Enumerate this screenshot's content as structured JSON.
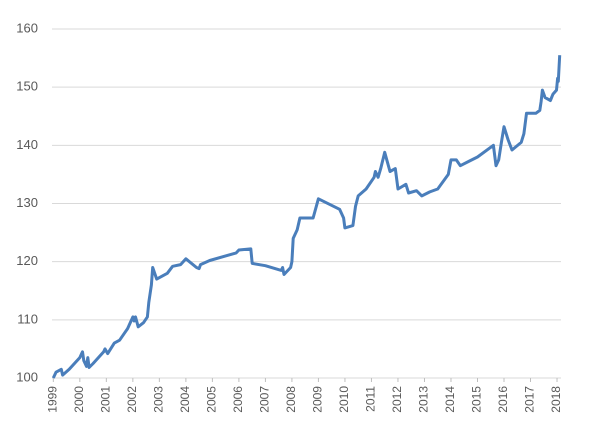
{
  "chart_data": {
    "type": "line",
    "color": "#4a7ebb",
    "grid": true,
    "x": [
      1999.0,
      1999.1,
      1999.3,
      1999.35,
      1999.6,
      2000.0,
      2000.1,
      2000.15,
      2000.25,
      2000.3,
      2000.35,
      2000.5,
      2000.9,
      2000.95,
      2001.05,
      2001.3,
      2001.5,
      2001.8,
      2002.0,
      2002.05,
      2002.1,
      2002.2,
      2002.4,
      2002.55,
      2002.6,
      2002.7,
      2002.75,
      2002.9,
      2003.3,
      2003.5,
      2003.8,
      2004.0,
      2004.4,
      2004.5,
      2004.55,
      2004.9,
      2005.5,
      2005.9,
      2006.0,
      2006.45,
      2006.5,
      2007.0,
      2007.6,
      2007.65,
      2007.7,
      2007.95,
      2008.0,
      2008.05,
      2008.2,
      2008.3,
      2008.8,
      2009.0,
      2009.8,
      2009.95,
      2010.0,
      2010.3,
      2010.4,
      2010.5,
      2010.8,
      2011.1,
      2011.15,
      2011.25,
      2011.35,
      2011.5,
      2011.7,
      2011.9,
      2012.0,
      2012.3,
      2012.4,
      2012.7,
      2012.9,
      2013.2,
      2013.5,
      2013.9,
      2014.0,
      2014.2,
      2014.35,
      2014.7,
      2015.0,
      2015.6,
      2015.7,
      2015.8,
      2015.9,
      2016.0,
      2016.15,
      2016.3,
      2016.65,
      2016.75,
      2016.85,
      2017.2,
      2017.35,
      2017.4,
      2017.45,
      2017.55,
      2017.75,
      2017.85,
      2017.98,
      2018.02,
      2018.05,
      2018.1
    ],
    "values": [
      100,
      101,
      101.5,
      100.5,
      101.5,
      103.5,
      104.5,
      103,
      102,
      103.5,
      101.8,
      102.5,
      104.5,
      105,
      104.2,
      106,
      106.5,
      108.5,
      110.5,
      109.8,
      110.5,
      108.8,
      109.5,
      110.5,
      113,
      116,
      119,
      117,
      118,
      119.2,
      119.5,
      120.5,
      119,
      118.8,
      119.5,
      120.2,
      121,
      121.5,
      122,
      122.2,
      119.7,
      119.3,
      118.5,
      119,
      117.8,
      119,
      120,
      124,
      125.5,
      127.5,
      127.5,
      130.8,
      129,
      127.5,
      125.8,
      126.2,
      129.5,
      131.3,
      132.5,
      134.5,
      135.5,
      134.5,
      136,
      138.8,
      135.5,
      136,
      132.5,
      133.3,
      131.8,
      132.2,
      131.3,
      132,
      132.5,
      135,
      137.5,
      137.5,
      136.5,
      137.3,
      138,
      140,
      136.5,
      137.5,
      140.5,
      143.2,
      141,
      139.2,
      140.5,
      142,
      145.5,
      145.5,
      146,
      147.5,
      149.5,
      148.2,
      147.7,
      148.8,
      149.5,
      151.5,
      151,
      155.5
    ],
    "xlim": [
      1998.95,
      2018.15
    ],
    "xticks": [
      1999,
      2000,
      2001,
      2002,
      2003,
      2004,
      2005,
      2006,
      2007,
      2008,
      2009,
      2010,
      2011,
      2012,
      2013,
      2014,
      2015,
      2016,
      2017,
      2018
    ],
    "ylim": [
      100,
      160
    ],
    "yticks": [
      100,
      110,
      120,
      130,
      140,
      150,
      160
    ]
  }
}
